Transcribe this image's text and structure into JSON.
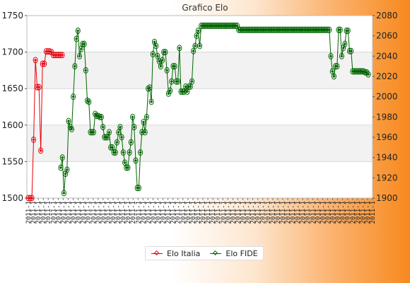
{
  "chart_data": {
    "type": "line",
    "title": "Grafico Elo",
    "left_axis": {
      "ylim": [
        1500,
        1750
      ],
      "ticks": [
        1500,
        1550,
        1600,
        1650,
        1700,
        1750
      ]
    },
    "right_axis": {
      "ylim": [
        1900,
        2080
      ],
      "ticks": [
        1900,
        1920,
        1940,
        1960,
        1980,
        2000,
        2020,
        2040,
        2060,
        2080
      ]
    },
    "x_tick_label": "2011-1",
    "x_tick_count": 70,
    "grid": "horizontal bands",
    "legend_position": "bottom",
    "series": [
      {
        "name": "Elo Italia",
        "axis": "left",
        "color": "#e8000b",
        "values": [
          1500,
          1500,
          1500,
          1580,
          1689,
          1652,
          1652,
          1565,
          1684,
          1684,
          1701,
          1701,
          1701,
          1700,
          1696,
          1696,
          1696,
          1696,
          1696,
          1696
        ]
      },
      {
        "name": "Elo FIDE",
        "axis": "right",
        "color": "#006400",
        "values": [
          1930,
          1940,
          1905,
          1924,
          1928,
          1976,
          1970,
          1968,
          2000,
          2030,
          2057,
          2065,
          2040,
          2047,
          2052,
          2052,
          2026,
          1996,
          1995,
          1965,
          1965,
          1965,
          1983,
          1981,
          1981,
          1980,
          1980,
          1970,
          1960,
          1960,
          1960,
          1965,
          1950,
          1950,
          1945,
          1945,
          1955,
          1965,
          1970,
          1960,
          1945,
          1935,
          1930,
          1930,
          1945,
          1955,
          1980,
          1970,
          1937,
          1910,
          1910,
          1945,
          1965,
          1975,
          1965,
          1980,
          2008,
          2009,
          1995,
          2042,
          2054,
          2050,
          2040,
          2035,
          2030,
          2036,
          2044,
          2044,
          2026,
          2003,
          2006,
          2015,
          2030,
          2030,
          2015,
          2015,
          2048,
          2005,
          2005,
          2005,
          2010,
          2005,
          2010,
          2010,
          2015,
          2045,
          2050,
          2060,
          2065,
          2050,
          2070,
          2070,
          2070,
          2070,
          2070,
          2070,
          2070,
          2070,
          2070,
          2070,
          2070,
          2070,
          2070,
          2070,
          2070,
          2070,
          2070,
          2070,
          2070,
          2070,
          2070,
          2070,
          2070,
          2070,
          2066,
          2066,
          2066,
          2066,
          2066,
          2066,
          2066,
          2066,
          2066,
          2066,
          2066,
          2066,
          2066,
          2066,
          2066,
          2066,
          2066,
          2066,
          2066,
          2066,
          2066,
          2066,
          2066,
          2066,
          2066,
          2066,
          2066,
          2066,
          2066,
          2066,
          2066,
          2066,
          2066,
          2066,
          2066,
          2066,
          2066,
          2066,
          2066,
          2066,
          2066,
          2066,
          2066,
          2066,
          2066,
          2066,
          2066,
          2066,
          2066,
          2066,
          2066,
          2066,
          2066,
          2066,
          2066,
          2066,
          2066,
          2066,
          2066,
          2040,
          2025,
          2020,
          2030,
          2030,
          2066,
          2066,
          2040,
          2048,
          2052,
          2065,
          2065,
          2045,
          2045,
          2025,
          2025,
          2025,
          2025,
          2025,
          2025,
          2025,
          2025,
          2024,
          2024,
          2022
        ]
      }
    ]
  }
}
